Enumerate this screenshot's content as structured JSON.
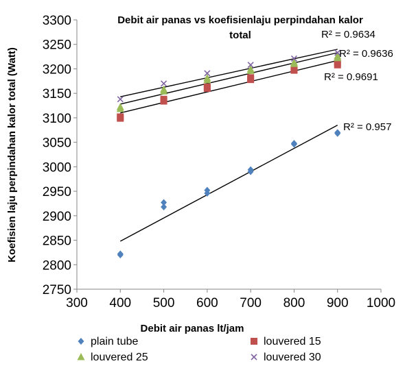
{
  "chart_data": {
    "type": "scatter",
    "title": "Debit air panas vs koefisienlaju perpindahan kalor total",
    "title_lines": [
      "Debit air panas vs koefisienlaju perpindahan kalor",
      "total"
    ],
    "xlabel": "Debit air panas lt/jam",
    "ylabel": "Koefisien laju perpindahan kalor total (Watt)",
    "xlim": [
      300,
      1000
    ],
    "ylim": [
      2750,
      3300
    ],
    "x_ticks": [
      "300",
      "400",
      "500",
      "600",
      "700",
      "800",
      "900",
      "1000"
    ],
    "y_ticks": [
      "2750",
      "2800",
      "2850",
      "2900",
      "2950",
      "3000",
      "3050",
      "3100",
      "3150",
      "3200",
      "3250",
      "3300"
    ],
    "grid": false,
    "legend_position": "bottom",
    "series": [
      {
        "name": "plain tube",
        "marker": "diamond",
        "color": "#4F81BD",
        "points": [
          [
            400,
            2822
          ],
          [
            400,
            2820
          ],
          [
            500,
            2927
          ],
          [
            500,
            2918
          ],
          [
            600,
            2952
          ],
          [
            600,
            2946
          ],
          [
            700,
            2994
          ],
          [
            700,
            2990
          ],
          [
            800,
            3048
          ],
          [
            800,
            3046
          ],
          [
            900,
            3070
          ],
          [
            900,
            3068
          ]
        ],
        "trendline": {
          "x": [
            400,
            900
          ],
          "y": [
            2848,
            3085
          ]
        },
        "r2_label": "R² = 0.957"
      },
      {
        "name": "louvered 15",
        "marker": "square",
        "color": "#C0504D",
        "points": [
          [
            400,
            3102
          ],
          [
            400,
            3099
          ],
          [
            500,
            3138
          ],
          [
            500,
            3134
          ],
          [
            600,
            3163
          ],
          [
            600,
            3160
          ],
          [
            700,
            3182
          ],
          [
            700,
            3178
          ],
          [
            800,
            3199
          ],
          [
            800,
            3197
          ],
          [
            900,
            3212
          ],
          [
            900,
            3208
          ]
        ],
        "trendline": {
          "x": [
            400,
            900
          ],
          "y": [
            3110,
            3217
          ]
        },
        "r2_label": "R² = 0.9691"
      },
      {
        "name": "louvered 25",
        "marker": "triangle",
        "color": "#9BBB59",
        "points": [
          [
            400,
            3122
          ],
          [
            400,
            3118
          ],
          [
            500,
            3158
          ],
          [
            500,
            3154
          ],
          [
            600,
            3181
          ],
          [
            600,
            3177
          ],
          [
            700,
            3199
          ],
          [
            700,
            3196
          ],
          [
            800,
            3213
          ],
          [
            800,
            3210
          ],
          [
            900,
            3226
          ],
          [
            900,
            3222
          ]
        ],
        "trendline": {
          "x": [
            400,
            900
          ],
          "y": [
            3128,
            3233
          ]
        },
        "r2_label": "R² = 0.9636"
      },
      {
        "name": "louvered 30",
        "marker": "x",
        "color": "#8064A2",
        "points": [
          [
            400,
            3138
          ],
          [
            500,
            3170
          ],
          [
            600,
            3191
          ],
          [
            700,
            3208
          ],
          [
            800,
            3221
          ],
          [
            900,
            3233
          ]
        ],
        "trendline": {
          "x": [
            400,
            900
          ],
          "y": [
            3143,
            3240
          ]
        },
        "r2_label": "R² = 0.9634"
      }
    ]
  }
}
